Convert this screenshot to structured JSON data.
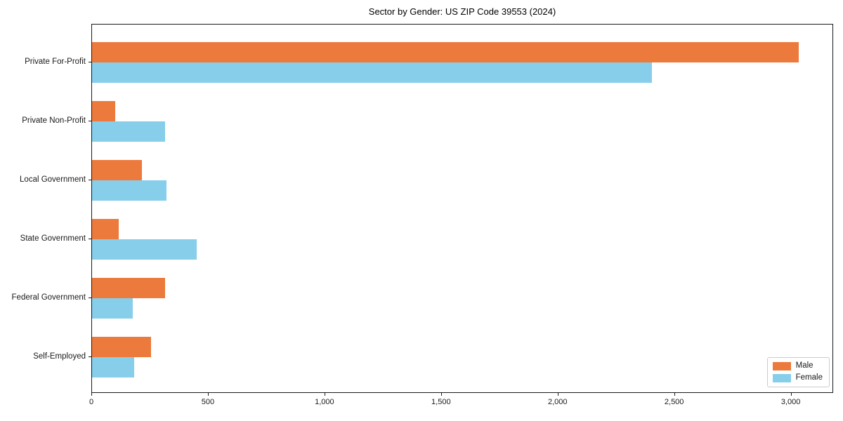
{
  "chart_data": {
    "type": "bar",
    "orientation": "horizontal",
    "title": "Sector by Gender: US ZIP Code 39553 (2024)",
    "categories": [
      "Private For-Profit",
      "Private Non-Profit",
      "Local Government",
      "State Government",
      "Federal Government",
      "Self-Employed"
    ],
    "series": [
      {
        "name": "Male",
        "color": "#ec7a3c",
        "values": [
          3030,
          98,
          213,
          115,
          314,
          254
        ]
      },
      {
        "name": "Female",
        "color": "#87ceeb",
        "values": [
          2403,
          312,
          320,
          450,
          174,
          182
        ]
      }
    ],
    "xlabel": "",
    "ylabel": "",
    "xlim": [
      0,
      3182
    ],
    "x_ticks": [
      0,
      500,
      1000,
      1500,
      2000,
      2500,
      3000
    ],
    "x_tick_labels": [
      "0",
      "500",
      "1,000",
      "1,500",
      "2,000",
      "2,500",
      "3,000"
    ],
    "grid": false,
    "legend_position": "lower right",
    "legend_entries": [
      "Male",
      "Female"
    ]
  }
}
